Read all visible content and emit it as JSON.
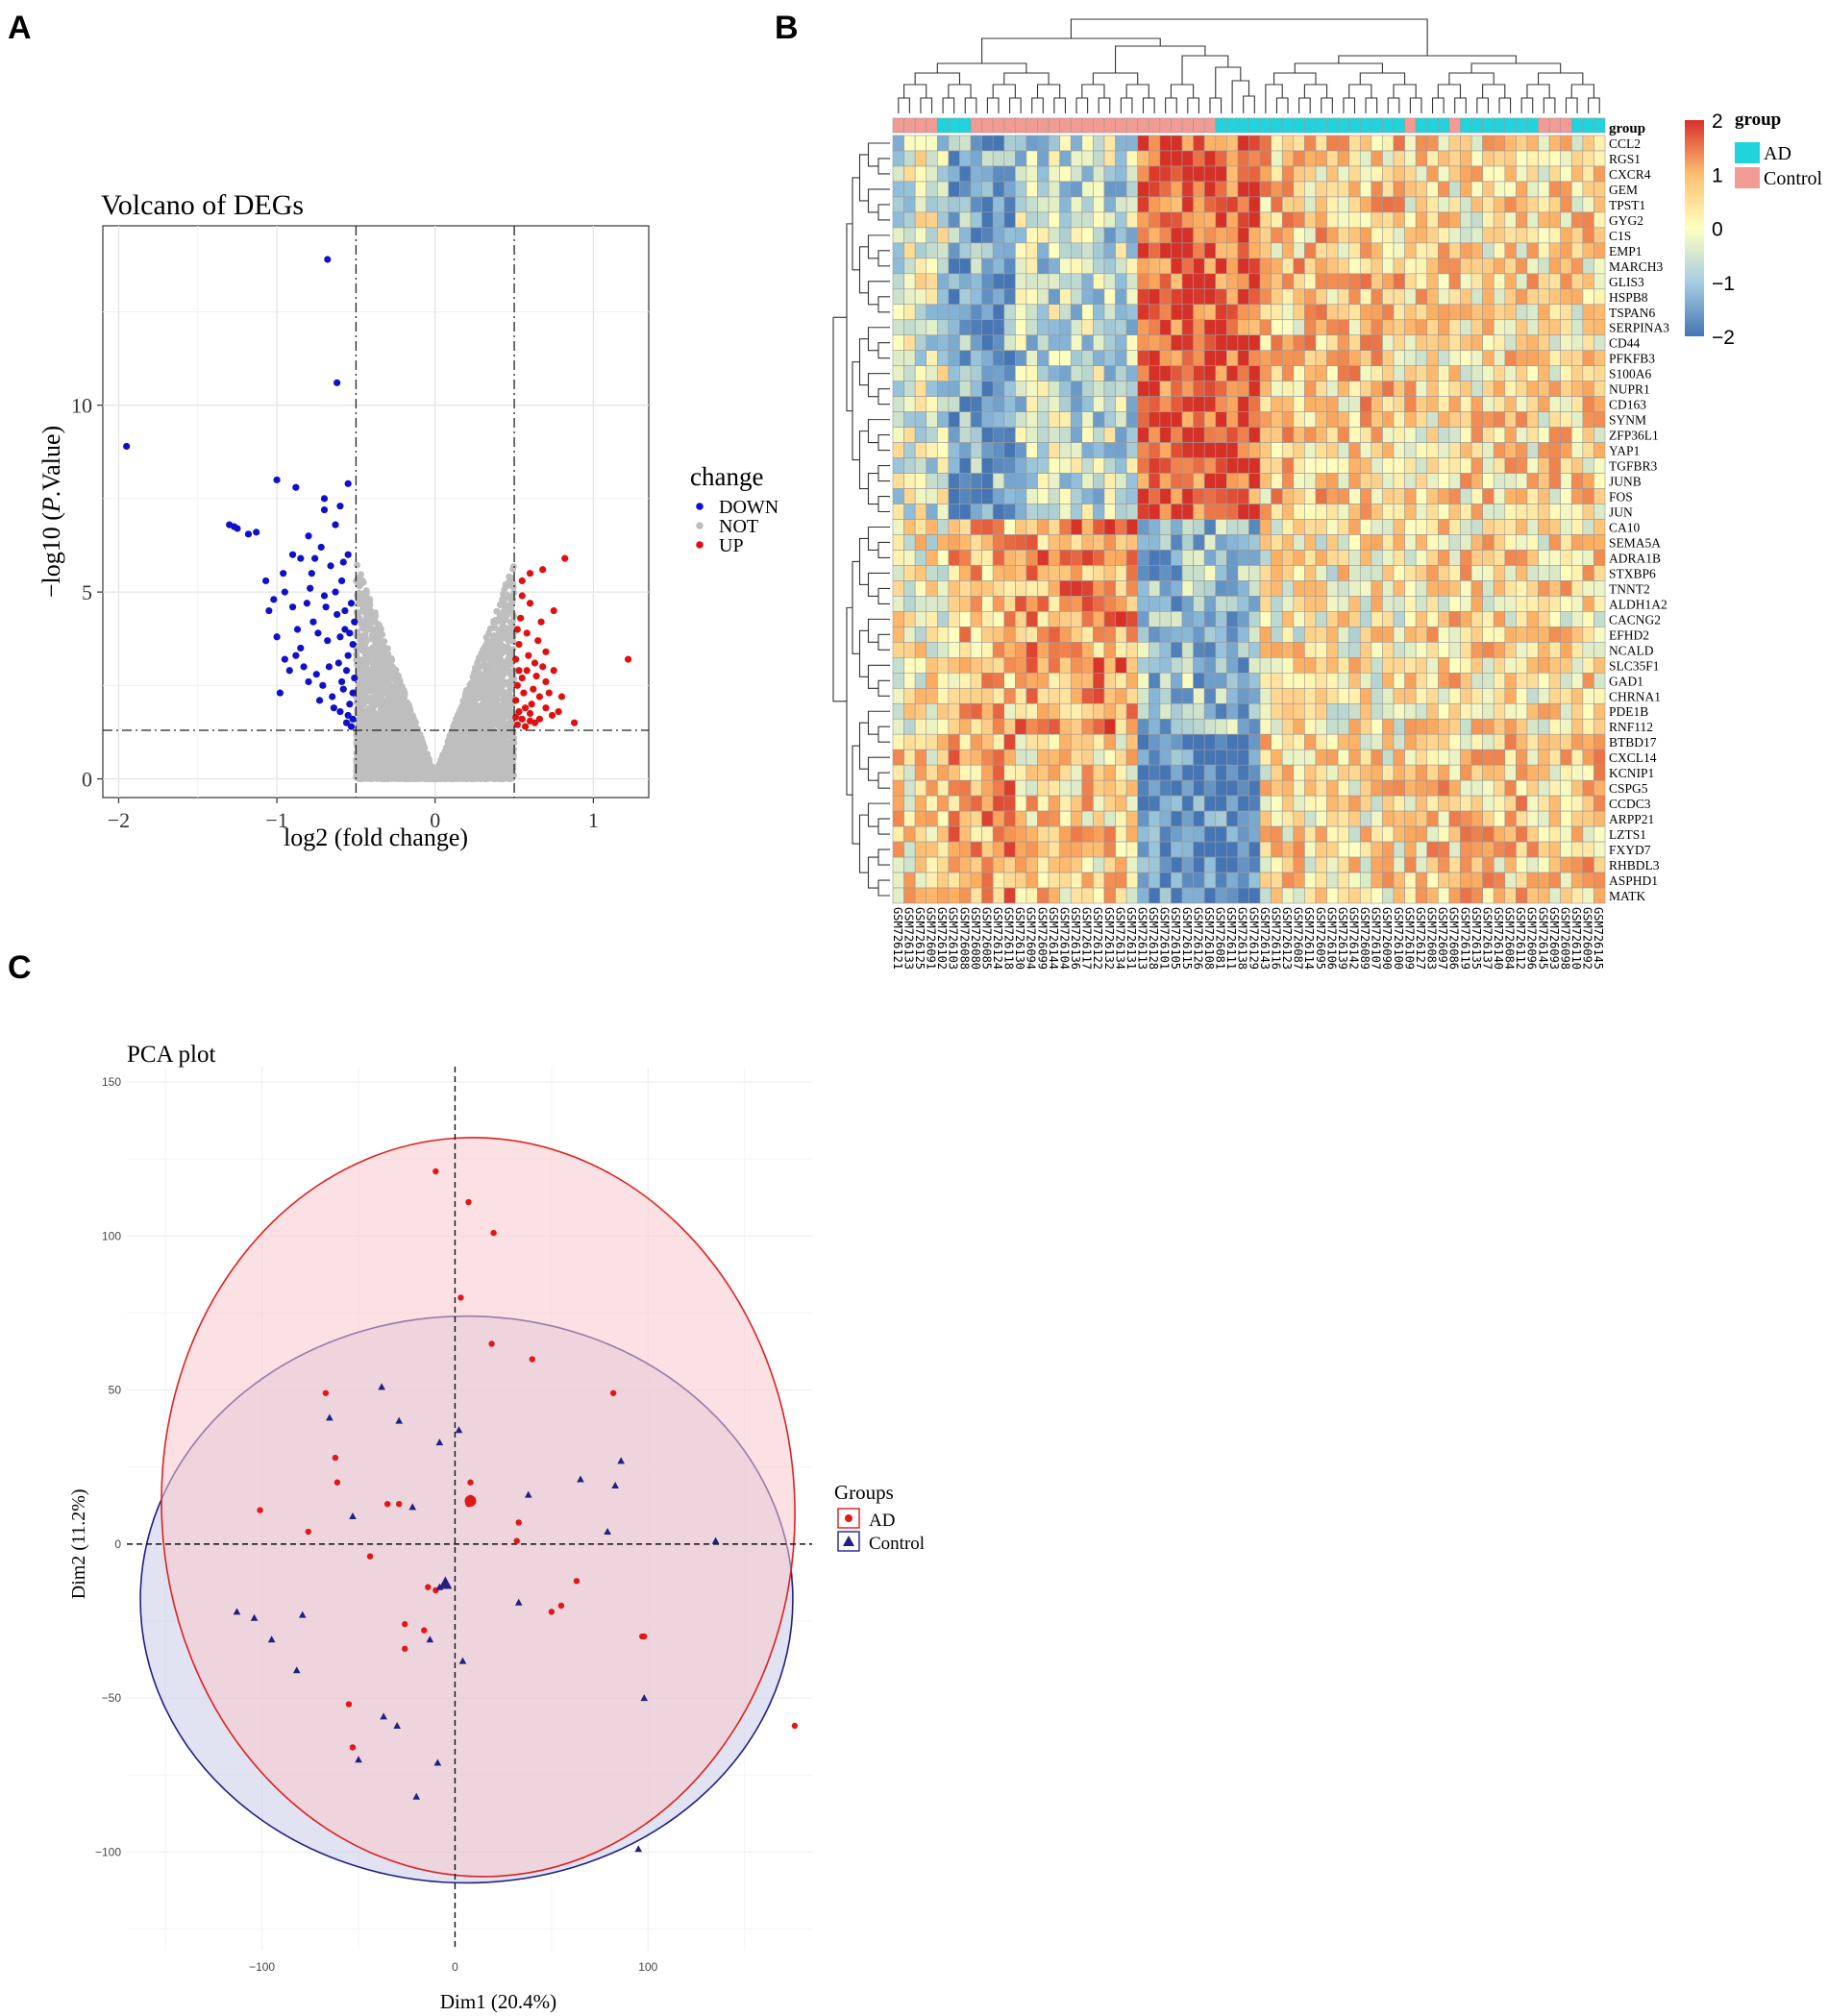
{
  "panels": {
    "a": "A",
    "b": "B",
    "c": "C"
  },
  "chart_data": [
    {
      "type": "scatter",
      "title": "Volcano of DEGs",
      "xlabel": "log2 (fold change)",
      "ylabel_prefix": "−log10 (",
      "ylabel_italic": "P",
      "ylabel_suffix": ".Value)",
      "xlim": [
        -2.1,
        1.35
      ],
      "ylim": [
        -0.5,
        14.8
      ],
      "xticks": [
        -2,
        -1,
        0,
        1
      ],
      "yticks": [
        0,
        5,
        10
      ],
      "xtick_labels": [
        "−2",
        "−1",
        "0",
        "1"
      ],
      "ytick_labels": [
        "0",
        "5",
        "10"
      ],
      "thresholds": {
        "fc_low": -0.5,
        "fc_high": 0.5,
        "neglog10p": 1.3
      },
      "legend": {
        "title": "change",
        "entries": [
          "DOWN",
          "NOT",
          "UP"
        ]
      },
      "colors": {
        "DOWN": "#1010c8",
        "NOT": "#bebebe",
        "UP": "#e01010"
      },
      "series": [
        {
          "name": "DOWN",
          "points": [
            [
              -1.95,
              8.9
            ],
            [
              -0.68,
              13.9
            ],
            [
              -0.62,
              10.6
            ],
            [
              -0.55,
              7.9
            ],
            [
              -1.3,
              6.8
            ],
            [
              -1.27,
              6.75
            ],
            [
              -1.25,
              6.7
            ],
            [
              -1.18,
              6.55
            ],
            [
              -1.13,
              6.6
            ],
            [
              -1.0,
              8.0
            ],
            [
              -0.88,
              7.8
            ],
            [
              -0.7,
              7.5
            ],
            [
              -0.7,
              7.2
            ],
            [
              -0.6,
              7.3
            ],
            [
              -1.05,
              4.5
            ],
            [
              -1.0,
              3.8
            ],
            [
              -1.07,
              5.3
            ],
            [
              -0.95,
              5.0
            ],
            [
              -0.95,
              3.2
            ],
            [
              -0.9,
              6.0
            ],
            [
              -0.9,
              4.6
            ],
            [
              -0.85,
              5.9
            ],
            [
              -0.85,
              3.5
            ],
            [
              -0.8,
              2.6
            ],
            [
              -0.8,
              6.5
            ],
            [
              -0.78,
              5.5
            ],
            [
              -0.77,
              4.2
            ],
            [
              -0.75,
              2.8
            ],
            [
              -0.72,
              6.2
            ],
            [
              -0.7,
              4.9
            ],
            [
              -0.68,
              3.7
            ],
            [
              -0.66,
              5.7
            ],
            [
              -0.65,
              2.2
            ],
            [
              -0.63,
              6.8
            ],
            [
              -0.62,
              4.4
            ],
            [
              -0.61,
              3.1
            ],
            [
              -0.6,
              1.8
            ],
            [
              -0.59,
              5.3
            ],
            [
              -0.58,
              2.4
            ],
            [
              -0.57,
              4.0
            ],
            [
              -0.56,
              1.5
            ],
            [
              -0.55,
              3.3
            ],
            [
              -0.55,
              6.0
            ],
            [
              -0.54,
              2.0
            ],
            [
              -0.53,
              4.7
            ],
            [
              -0.52,
              1.6
            ],
            [
              -0.52,
              3.6
            ],
            [
              -0.51,
              2.7
            ],
            [
              -0.98,
              2.3
            ],
            [
              -0.92,
              2.9
            ],
            [
              -0.87,
              4.0
            ],
            [
              -0.83,
              3.0
            ],
            [
              -0.79,
              5.1
            ],
            [
              -0.74,
              3.9
            ],
            [
              -0.71,
              2.5
            ],
            [
              -0.69,
              4.6
            ],
            [
              -0.64,
              1.9
            ],
            [
              -0.6,
              3.8
            ],
            [
              -0.58,
              5.8
            ],
            [
              -0.56,
              2.9
            ],
            [
              -0.53,
              1.4
            ],
            [
              -0.51,
              4.2
            ],
            [
              -1.02,
              4.8
            ],
            [
              -0.96,
              5.5
            ],
            [
              -0.88,
              3.3
            ],
            [
              -0.81,
              4.7
            ],
            [
              -0.76,
              5.9
            ],
            [
              -0.73,
              2.1
            ],
            [
              -0.67,
              3.0
            ],
            [
              -0.63,
              5.0
            ],
            [
              -0.59,
              2.6
            ],
            [
              -0.57,
              4.5
            ],
            [
              -0.55,
              1.7
            ],
            [
              -0.54,
              3.9
            ],
            [
              -0.52,
              2.3
            ]
          ]
        },
        {
          "name": "UP",
          "points": [
            [
              1.22,
              3.2
            ],
            [
              0.82,
              5.9
            ],
            [
              0.68,
              5.6
            ],
            [
              0.6,
              5.5
            ],
            [
              0.55,
              5.3
            ],
            [
              0.75,
              4.5
            ],
            [
              0.67,
              4.2
            ],
            [
              0.6,
              4.7
            ],
            [
              0.55,
              4.9
            ],
            [
              0.52,
              4.0
            ],
            [
              0.7,
              3.4
            ],
            [
              0.65,
              3.7
            ],
            [
              0.58,
              3.9
            ],
            [
              0.53,
              3.6
            ],
            [
              0.51,
              3.2
            ],
            [
              0.75,
              2.9
            ],
            [
              0.7,
              2.6
            ],
            [
              0.66,
              2.2
            ],
            [
              0.62,
              2.4
            ],
            [
              0.58,
              2.9
            ],
            [
              0.55,
              2.7
            ],
            [
              0.52,
              2.5
            ],
            [
              0.51,
              2.1
            ],
            [
              0.78,
              1.8
            ],
            [
              0.74,
              1.7
            ],
            [
              0.7,
              1.9
            ],
            [
              0.66,
              1.6
            ],
            [
              0.63,
              1.5
            ],
            [
              0.6,
              1.75
            ],
            [
              0.57,
              1.9
            ],
            [
              0.55,
              1.6
            ],
            [
              0.53,
              1.8
            ],
            [
              0.52,
              1.45
            ],
            [
              0.51,
              1.65
            ],
            [
              0.63,
              3.1
            ],
            [
              0.59,
              3.3
            ],
            [
              0.56,
              2.3
            ],
            [
              0.53,
              2.9
            ],
            [
              0.72,
              2.3
            ],
            [
              0.68,
              3.0
            ],
            [
              0.61,
              2.0
            ],
            [
              0.57,
              1.4
            ],
            [
              0.88,
              1.5
            ],
            [
              0.8,
              2.2
            ],
            [
              0.54,
              4.3
            ],
            [
              0.64,
              2.75
            ],
            [
              0.6,
              1.55
            ]
          ]
        }
      ]
    },
    {
      "type": "heatmap",
      "title": "",
      "group_label": "group",
      "legend_title": "group",
      "legend_entries": [
        "AD",
        "Control"
      ],
      "group_colors": {
        "AD": "#1fd4dc",
        "Control": "#f29a94"
      },
      "colorbar": {
        "ticks": [
          2,
          1,
          0,
          -1,
          -2
        ],
        "labels": [
          "2",
          "1",
          "0",
          "−1",
          "−2"
        ],
        "colors": [
          "#d7302a",
          "#fdbf70",
          "#ffffbf",
          "#a6cde3",
          "#4575b4"
        ]
      },
      "rows": [
        "CCL2",
        "RGS1",
        "CXCR4",
        "GEM",
        "TPST1",
        "GYG2",
        "C1S",
        "EMP1",
        "MARCH3",
        "GLIS3",
        "HSPB8",
        "TSPAN6",
        "SERPINA3",
        "CD44",
        "PFKFB3",
        "S100A6",
        "NUPR1",
        "CD163",
        "SYNM",
        "ZFP36L1",
        "YAP1",
        "TGFBR3",
        "JUNB",
        "FOS",
        "JUN",
        "CA10",
        "SEMA5A",
        "ADRA1B",
        "STXBP6",
        "TNNT2",
        "ALDH1A2",
        "CACNG2",
        "EFHD2",
        "NCALD",
        "SLC35F1",
        "GAD1",
        "CHRNA1",
        "PDE1B",
        "RNF112",
        "BTBD17",
        "CXCL14",
        "KCNIP1",
        "CSPG5",
        "CCDC3",
        "ARPP21",
        "LZTS1",
        "FXYD7",
        "RHBDL3",
        "ASPHD1",
        "MATK"
      ],
      "columns": [
        "GSM726121",
        "GSM726133",
        "GSM726125",
        "GSM726091",
        "GSM726102",
        "GSM726103",
        "GSM726088",
        "GSM726080",
        "GSM726085",
        "GSM726124",
        "GSM726118",
        "GSM726130",
        "GSM726094",
        "GSM726099",
        "GSM726144",
        "GSM726104",
        "GSM726136",
        "GSM726117",
        "GSM726122",
        "GSM726132",
        "GSM726134",
        "GSM726131",
        "GSM726113",
        "GSM726128",
        "GSM726101",
        "GSM726105",
        "GSM726115",
        "GSM726126",
        "GSM726108",
        "GSM726081",
        "GSM726111",
        "GSM726138",
        "GSM726129",
        "GSM726143",
        "GSM726116",
        "GSM726123",
        "GSM726087",
        "GSM726114",
        "GSM726095",
        "GSM726106",
        "GSM726139",
        "GSM726142",
        "GSM726089",
        "GSM726107",
        "GSM726090",
        "GSM726100",
        "GSM726109",
        "GSM726127",
        "GSM726083",
        "GSM726097",
        "GSM726086",
        "GSM726119",
        "GSM726135",
        "GSM726137",
        "GSM726140",
        "GSM726084",
        "GSM726112",
        "GSM726096",
        "GSM726145",
        "GSM726093",
        "GSM726098",
        "GSM726110",
        "GSM726092",
        "GSM726145"
      ],
      "column_groups": [
        "Control",
        "Control",
        "Control",
        "Control",
        "AD",
        "AD",
        "AD",
        "Control",
        "Control",
        "Control",
        "Control",
        "Control",
        "Control",
        "Control",
        "Control",
        "Control",
        "Control",
        "Control",
        "Control",
        "Control",
        "Control",
        "Control",
        "Control",
        "Control",
        "Control",
        "Control",
        "Control",
        "Control",
        "Control",
        "AD",
        "AD",
        "AD",
        "AD",
        "AD",
        "AD",
        "AD",
        "AD",
        "AD",
        "AD",
        "AD",
        "AD",
        "AD",
        "AD",
        "AD",
        "AD",
        "AD",
        "Control",
        "AD",
        "AD",
        "AD",
        "Control",
        "AD",
        "AD",
        "AD",
        "AD",
        "AD",
        "AD",
        "AD",
        "Control",
        "Control",
        "Control",
        "AD",
        "AD",
        "AD"
      ]
    },
    {
      "type": "scatter",
      "title": "PCA plot",
      "xlabel": "Dim1 (20.4%)",
      "ylabel": "Dim2 (11.2%)",
      "xlim": [
        -170,
        185
      ],
      "ylim": [
        -132,
        155
      ],
      "xticks": [
        -100,
        0,
        100
      ],
      "yticks": [
        150,
        100,
        50,
        0,
        -50,
        -100
      ],
      "xtick_labels": [
        "−100",
        "0",
        "100"
      ],
      "ytick_labels": [
        "150",
        "100",
        "50",
        "0",
        "−50",
        "−100"
      ],
      "legend": {
        "title": "Groups",
        "entries": [
          "AD",
          "Control"
        ]
      },
      "colors": {
        "AD": "#e01818",
        "Control": "#202080"
      },
      "ellipses": [
        {
          "name": "AD",
          "cx": 12,
          "cy": 12,
          "rx": 164,
          "ry": 120,
          "angle": -3,
          "fill": "#f8c8cc",
          "stroke": "#e02020"
        },
        {
          "name": "Control",
          "cx": 6,
          "cy": -18,
          "rx": 169,
          "ry": 92,
          "angle": 0,
          "fill": "#c8cce8",
          "stroke": "#202080"
        }
      ],
      "series": [
        {
          "name": "AD",
          "marker": "circle",
          "points": [
            [
              -10,
              121
            ],
            [
              7,
              111
            ],
            [
              20,
              101
            ],
            [
              3,
              80
            ],
            [
              19,
              65
            ],
            [
              40,
              60
            ],
            [
              82,
              49
            ],
            [
              -67,
              49
            ],
            [
              -62,
              28
            ],
            [
              -61,
              20
            ],
            [
              -101,
              11
            ],
            [
              -76,
              4
            ],
            [
              -44,
              -4
            ],
            [
              -35,
              13
            ],
            [
              -29,
              13
            ],
            [
              8,
              20
            ],
            [
              8,
              15
            ],
            [
              7,
              13
            ],
            [
              33,
              7
            ],
            [
              32,
              1
            ],
            [
              63,
              -12
            ],
            [
              55,
              -20
            ],
            [
              50,
              -22
            ],
            [
              -14,
              -14
            ],
            [
              -10,
              -15
            ],
            [
              -26,
              -26
            ],
            [
              -16,
              -28
            ],
            [
              -26,
              -34
            ],
            [
              -55,
              -52
            ],
            [
              -53,
              -66
            ],
            [
              97,
              -30
            ],
            [
              98,
              -30
            ],
            [
              176,
              -59
            ]
          ]
        },
        {
          "name": "Control",
          "marker": "triangle",
          "points": [
            [
              -38,
              51
            ],
            [
              -65,
              41
            ],
            [
              -29,
              40
            ],
            [
              2,
              37
            ],
            [
              -8,
              33
            ],
            [
              86,
              27
            ],
            [
              65,
              21
            ],
            [
              83,
              19
            ],
            [
              38,
              16
            ],
            [
              -22,
              12
            ],
            [
              -53,
              9
            ],
            [
              79,
              4
            ],
            [
              135,
              1
            ],
            [
              -8,
              -14
            ],
            [
              -113,
              -22
            ],
            [
              -104,
              -24
            ],
            [
              -79,
              -23
            ],
            [
              -95,
              -31
            ],
            [
              -82,
              -41
            ],
            [
              -13,
              -31
            ],
            [
              33,
              -19
            ],
            [
              -37,
              -56
            ],
            [
              -30,
              -59
            ],
            [
              -50,
              -70
            ],
            [
              -9,
              -71
            ],
            [
              -20,
              -82
            ],
            [
              4,
              -38
            ],
            [
              98,
              -50
            ],
            [
              95,
              -99
            ]
          ]
        }
      ]
    }
  ]
}
